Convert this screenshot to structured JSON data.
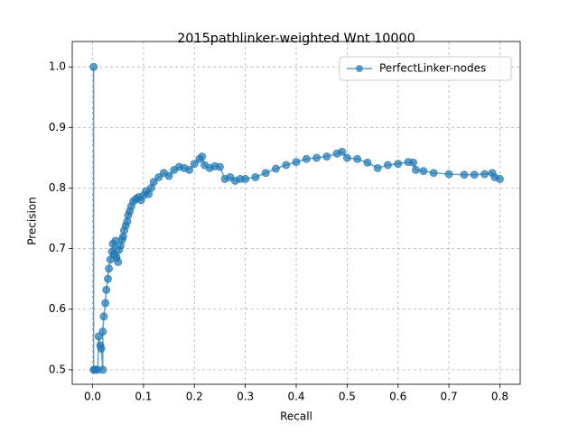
{
  "chart_data": {
    "type": "line",
    "title": "2015pathlinker-weighted Wnt 10000",
    "xlabel": "Recall",
    "ylabel": "Precision",
    "xlim": [
      -0.04,
      0.84
    ],
    "ylim": [
      0.476,
      1.042
    ],
    "xticks": [
      {
        "value": 0,
        "label": "0.0"
      },
      0.1,
      0.2,
      0.3,
      0.4,
      0.5,
      0.6,
      0.7,
      0.8
    ],
    "yticks": [
      0.5,
      0.6,
      0.7,
      0.8,
      0.9,
      {
        "value": 1,
        "label": "1.0"
      }
    ],
    "grid": true,
    "legend": "upper right",
    "series": [
      {
        "name": "PerfectLinker-nodes",
        "color": "#1f77b4",
        "x": [
          0.002,
          0.002,
          0.005,
          0.01,
          0.012,
          0.015,
          0.017,
          0.02,
          0.02,
          0.022,
          0.025,
          0.027,
          0.03,
          0.032,
          0.035,
          0.038,
          0.04,
          0.042,
          0.045,
          0.047,
          0.05,
          0.052,
          0.055,
          0.058,
          0.06,
          0.062,
          0.065,
          0.068,
          0.07,
          0.073,
          0.076,
          0.08,
          0.085,
          0.09,
          0.095,
          0.1,
          0.105,
          0.11,
          0.115,
          0.12,
          0.13,
          0.14,
          0.15,
          0.16,
          0.17,
          0.18,
          0.19,
          0.2,
          0.21,
          0.215,
          0.22,
          0.23,
          0.24,
          0.25,
          0.26,
          0.27,
          0.28,
          0.29,
          0.3,
          0.32,
          0.34,
          0.36,
          0.38,
          0.4,
          0.42,
          0.44,
          0.46,
          0.48,
          0.49,
          0.5,
          0.52,
          0.54,
          0.56,
          0.58,
          0.6,
          0.62,
          0.63,
          0.635,
          0.65,
          0.67,
          0.7,
          0.73,
          0.75,
          0.77,
          0.785,
          0.79,
          0.8
        ],
        "values": [
          1.0,
          0.5,
          0.5,
          0.5,
          0.555,
          0.54,
          0.535,
          0.5,
          0.563,
          0.588,
          0.61,
          0.632,
          0.65,
          0.667,
          0.682,
          0.695,
          0.708,
          0.69,
          0.713,
          0.685,
          0.678,
          0.698,
          0.705,
          0.715,
          0.72,
          0.73,
          0.738,
          0.745,
          0.755,
          0.762,
          0.77,
          0.778,
          0.782,
          0.785,
          0.78,
          0.788,
          0.795,
          0.79,
          0.8,
          0.81,
          0.818,
          0.825,
          0.82,
          0.83,
          0.835,
          0.833,
          0.83,
          0.84,
          0.848,
          0.852,
          0.838,
          0.833,
          0.836,
          0.835,
          0.815,
          0.818,
          0.812,
          0.815,
          0.815,
          0.818,
          0.825,
          0.832,
          0.838,
          0.843,
          0.848,
          0.85,
          0.852,
          0.857,
          0.86,
          0.85,
          0.848,
          0.842,
          0.833,
          0.838,
          0.84,
          0.843,
          0.842,
          0.83,
          0.828,
          0.825,
          0.823,
          0.822,
          0.822,
          0.823,
          0.825,
          0.818,
          0.815
        ]
      }
    ]
  }
}
